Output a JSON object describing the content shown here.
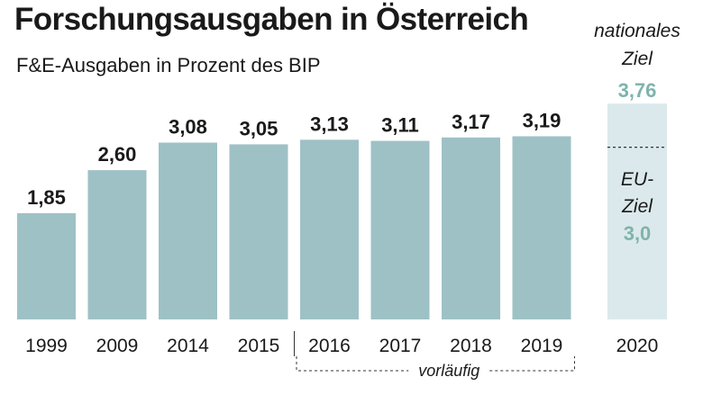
{
  "header": {
    "title": "Forschungsausgaben in Österreich",
    "subtitle": "F&E-Ausgaben in Prozent des BIP"
  },
  "colors": {
    "bar": "#9ec1c6",
    "target_bar": "#dbe9ec",
    "target_value": "#7fb3ad",
    "text": "#1a1a1a"
  },
  "chart_data": {
    "type": "bar",
    "title": "Forschungsausgaben in Österreich",
    "subtitle": "F&E-Ausgaben in Prozent des BIP",
    "categories": [
      "1999",
      "2009",
      "2014",
      "2015",
      "2016",
      "2017",
      "2018",
      "2019"
    ],
    "values": [
      1.85,
      2.6,
      3.08,
      3.05,
      3.13,
      3.11,
      3.17,
      3.19
    ],
    "value_labels": [
      "1,85",
      "2,60",
      "3,08",
      "3,05",
      "3,13",
      "3,11",
      "3,17",
      "3,19"
    ],
    "ylim": [
      0,
      3.76
    ],
    "grid": false,
    "provisional": {
      "label": "vorläufig",
      "categories": [
        "2016",
        "2017",
        "2018",
        "2019"
      ]
    },
    "target": {
      "category": "2020",
      "national_label_line1": "nationales",
      "national_label_line2": "Ziel",
      "national_value": 3.76,
      "national_value_label": "3,76",
      "eu_label_line1": "EU-",
      "eu_label_line2": "Ziel",
      "eu_value": 3.0,
      "eu_value_label": "3,0"
    }
  }
}
